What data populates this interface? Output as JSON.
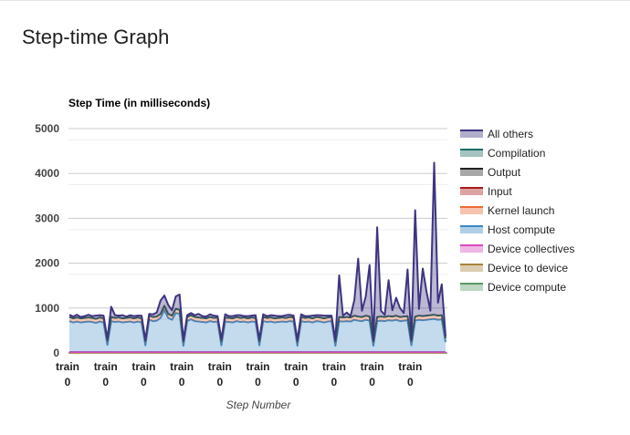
{
  "page": {
    "title": "Step-time Graph"
  },
  "chart_data": {
    "type": "area",
    "stacked": true,
    "title": "Step Time (in milliseconds)",
    "xlabel": "Step Number",
    "ylabel": "",
    "ylim": [
      0,
      5000
    ],
    "yticks": [
      0,
      1000,
      2000,
      3000,
      4000,
      5000
    ],
    "xticks": [
      {
        "top": "train",
        "bottom": "0"
      },
      {
        "top": "train",
        "bottom": "0"
      },
      {
        "top": "train",
        "bottom": "0"
      },
      {
        "top": "train",
        "bottom": "0"
      },
      {
        "top": "train",
        "bottom": "0"
      },
      {
        "top": "train",
        "bottom": "0"
      },
      {
        "top": "train",
        "bottom": "0"
      },
      {
        "top": "train",
        "bottom": "0"
      },
      {
        "top": "train",
        "bottom": "0"
      },
      {
        "top": "train",
        "bottom": "0"
      }
    ],
    "grid": true,
    "legend_position": "right",
    "x_count": 100,
    "series": [
      {
        "name": "Device compute",
        "color": "#5a9a66",
        "values": [
          0,
          0,
          0,
          0,
          0,
          0,
          0,
          0,
          0,
          0,
          0,
          0,
          0,
          0,
          0,
          0,
          0,
          0,
          0,
          0,
          0,
          0,
          0,
          0,
          0,
          0,
          0,
          0,
          0,
          0,
          0,
          0,
          0,
          0,
          0,
          0,
          0,
          0,
          0,
          0,
          0,
          0,
          0,
          0,
          0,
          0,
          0,
          0,
          0,
          0,
          0,
          0,
          0,
          0,
          0,
          0,
          0,
          0,
          0,
          0,
          0,
          0,
          0,
          0,
          0,
          0,
          0,
          0,
          0,
          0,
          0,
          0,
          0,
          0,
          0,
          0,
          0,
          0,
          0,
          0,
          0,
          0,
          0,
          0,
          0,
          0,
          0,
          0,
          0,
          0,
          0,
          0,
          0,
          0,
          0,
          0,
          0,
          0,
          0,
          0
        ]
      },
      {
        "name": "Device to device",
        "color": "#a8833a",
        "values": [
          0,
          0,
          0,
          0,
          0,
          0,
          0,
          0,
          0,
          0,
          0,
          0,
          0,
          0,
          0,
          0,
          0,
          0,
          0,
          0,
          0,
          0,
          0,
          0,
          0,
          0,
          0,
          0,
          0,
          0,
          0,
          0,
          0,
          0,
          0,
          0,
          0,
          0,
          0,
          0,
          0,
          0,
          0,
          0,
          0,
          0,
          0,
          0,
          0,
          0,
          0,
          0,
          0,
          0,
          0,
          0,
          0,
          0,
          0,
          0,
          0,
          0,
          0,
          0,
          0,
          0,
          0,
          0,
          0,
          0,
          0,
          0,
          0,
          0,
          0,
          0,
          0,
          0,
          0,
          0,
          0,
          0,
          0,
          0,
          0,
          0,
          0,
          0,
          0,
          0,
          0,
          0,
          0,
          0,
          0,
          0,
          0,
          0,
          0,
          0
        ]
      },
      {
        "name": "Device collectives",
        "color": "#d54bbf",
        "values": [
          20,
          20,
          20,
          20,
          20,
          20,
          20,
          20,
          20,
          20,
          20,
          20,
          20,
          20,
          20,
          20,
          20,
          20,
          20,
          20,
          20,
          20,
          20,
          20,
          20,
          20,
          20,
          20,
          20,
          20,
          20,
          20,
          20,
          20,
          20,
          20,
          20,
          20,
          20,
          20,
          20,
          20,
          20,
          20,
          20,
          20,
          20,
          20,
          20,
          20,
          20,
          20,
          20,
          20,
          20,
          20,
          20,
          20,
          20,
          20,
          20,
          20,
          20,
          20,
          20,
          20,
          20,
          20,
          20,
          20,
          20,
          20,
          20,
          20,
          20,
          20,
          20,
          20,
          20,
          20,
          20,
          20,
          20,
          20,
          20,
          20,
          20,
          20,
          20,
          20,
          20,
          20,
          20,
          20,
          20,
          20,
          20,
          20,
          20,
          20
        ]
      },
      {
        "name": "Host compute",
        "color": "#3a86c4",
        "values": [
          690,
          660,
          680,
          660,
          670,
          680,
          670,
          650,
          680,
          660,
          160,
          690,
          670,
          680,
          660,
          670,
          680,
          660,
          680,
          660,
          150,
          720,
          690,
          700,
          760,
          940,
          760,
          720,
          870,
          850,
          140,
          690,
          730,
          690,
          680,
          670,
          660,
          690,
          670,
          680,
          150,
          680,
          670,
          660,
          690,
          670,
          680,
          660,
          680,
          670,
          150,
          690,
          670,
          680,
          660,
          670,
          680,
          670,
          690,
          680,
          140,
          690,
          670,
          680,
          660,
          690,
          680,
          660,
          680,
          690,
          140,
          690,
          680,
          690,
          680,
          720,
          700,
          690,
          720,
          700,
          140,
          690,
          700,
          690,
          710,
          700,
          720,
          690,
          700,
          710,
          150,
          700,
          720,
          710,
          720,
          730,
          740,
          720,
          730,
          220
        ]
      },
      {
        "name": "Kernel launch",
        "color": "#ec6a36",
        "values": [
          90,
          90,
          90,
          90,
          90,
          90,
          90,
          90,
          90,
          90,
          90,
          90,
          90,
          90,
          90,
          90,
          90,
          90,
          90,
          90,
          90,
          90,
          90,
          90,
          90,
          90,
          90,
          90,
          90,
          90,
          90,
          90,
          90,
          90,
          90,
          90,
          90,
          90,
          90,
          90,
          90,
          90,
          90,
          90,
          90,
          90,
          90,
          90,
          90,
          90,
          90,
          90,
          90,
          90,
          90,
          90,
          90,
          90,
          90,
          90,
          90,
          90,
          90,
          90,
          90,
          90,
          90,
          90,
          90,
          90,
          90,
          90,
          90,
          90,
          90,
          90,
          90,
          90,
          90,
          90,
          90,
          90,
          90,
          90,
          90,
          90,
          90,
          90,
          90,
          90,
          90,
          90,
          90,
          90,
          90,
          90,
          90,
          90,
          90,
          90
        ]
      },
      {
        "name": "Input",
        "color": "#a91a1a",
        "values": [
          0,
          0,
          0,
          0,
          0,
          0,
          0,
          0,
          0,
          0,
          0,
          0,
          0,
          0,
          0,
          0,
          0,
          0,
          0,
          0,
          0,
          0,
          0,
          0,
          0,
          0,
          0,
          0,
          0,
          0,
          0,
          0,
          0,
          0,
          0,
          0,
          0,
          0,
          0,
          0,
          0,
          0,
          0,
          0,
          0,
          0,
          0,
          0,
          0,
          0,
          0,
          0,
          0,
          0,
          0,
          0,
          0,
          0,
          0,
          0,
          0,
          0,
          0,
          0,
          0,
          0,
          0,
          0,
          0,
          0,
          0,
          0,
          0,
          0,
          0,
          0,
          0,
          0,
          0,
          0,
          0,
          0,
          0,
          0,
          0,
          0,
          0,
          0,
          0,
          0,
          0,
          0,
          0,
          0,
          0,
          0,
          0,
          0,
          0,
          0
        ]
      },
      {
        "name": "Output",
        "color": "#222222",
        "values": [
          0,
          0,
          0,
          0,
          0,
          0,
          0,
          0,
          0,
          0,
          0,
          0,
          0,
          0,
          0,
          0,
          0,
          0,
          0,
          0,
          0,
          0,
          0,
          0,
          0,
          0,
          0,
          0,
          0,
          0,
          0,
          0,
          0,
          0,
          0,
          0,
          0,
          0,
          0,
          0,
          0,
          0,
          0,
          0,
          0,
          0,
          0,
          0,
          0,
          0,
          0,
          0,
          0,
          0,
          0,
          0,
          0,
          0,
          0,
          0,
          0,
          0,
          0,
          0,
          0,
          0,
          0,
          0,
          0,
          0,
          0,
          0,
          0,
          0,
          0,
          0,
          0,
          0,
          0,
          0,
          0,
          0,
          0,
          0,
          0,
          0,
          0,
          0,
          0,
          0,
          0,
          0,
          0,
          0,
          0,
          0,
          0,
          0,
          0,
          0
        ]
      },
      {
        "name": "Compilation",
        "color": "#1f6b64",
        "values": [
          0,
          0,
          0,
          0,
          0,
          0,
          0,
          0,
          0,
          0,
          0,
          0,
          0,
          0,
          0,
          0,
          0,
          0,
          0,
          0,
          0,
          0,
          0,
          0,
          0,
          0,
          0,
          0,
          0,
          0,
          0,
          0,
          0,
          0,
          0,
          0,
          0,
          0,
          0,
          0,
          0,
          0,
          0,
          0,
          0,
          0,
          0,
          0,
          0,
          0,
          0,
          0,
          0,
          0,
          0,
          0,
          0,
          0,
          0,
          0,
          0,
          0,
          0,
          0,
          0,
          0,
          0,
          0,
          0,
          0,
          0,
          0,
          0,
          0,
          0,
          0,
          0,
          0,
          0,
          0,
          0,
          0,
          0,
          0,
          0,
          0,
          0,
          0,
          0,
          0,
          0,
          0,
          0,
          0,
          0,
          0,
          0,
          0,
          0,
          0
        ]
      },
      {
        "name": "All others",
        "color": "#3d3580",
        "values": [
          50,
          40,
          60,
          30,
          40,
          60,
          40,
          70,
          50,
          60,
          40,
          230,
          60,
          40,
          70,
          30,
          50,
          50,
          40,
          60,
          30,
          40,
          60,
          90,
          300,
          230,
          200,
          120,
          280,
          340,
          40,
          40,
          50,
          40,
          80,
          40,
          40,
          60,
          50,
          30,
          40,
          70,
          40,
          50,
          40,
          60,
          30,
          50,
          40,
          60,
          40,
          60,
          40,
          50,
          60,
          40,
          30,
          60,
          50,
          40,
          40,
          60,
          40,
          30,
          60,
          40,
          50,
          60,
          40,
          30,
          40,
          930,
          40,
          100,
          30,
          350,
          1290,
          140,
          430,
          1150,
          40,
          2000,
          130,
          50,
          800,
          140,
          400,
          200,
          80,
          1040,
          40,
          2370,
          150,
          1060,
          530,
          100,
          3390,
          290,
          690,
          40
        ]
      }
    ]
  }
}
